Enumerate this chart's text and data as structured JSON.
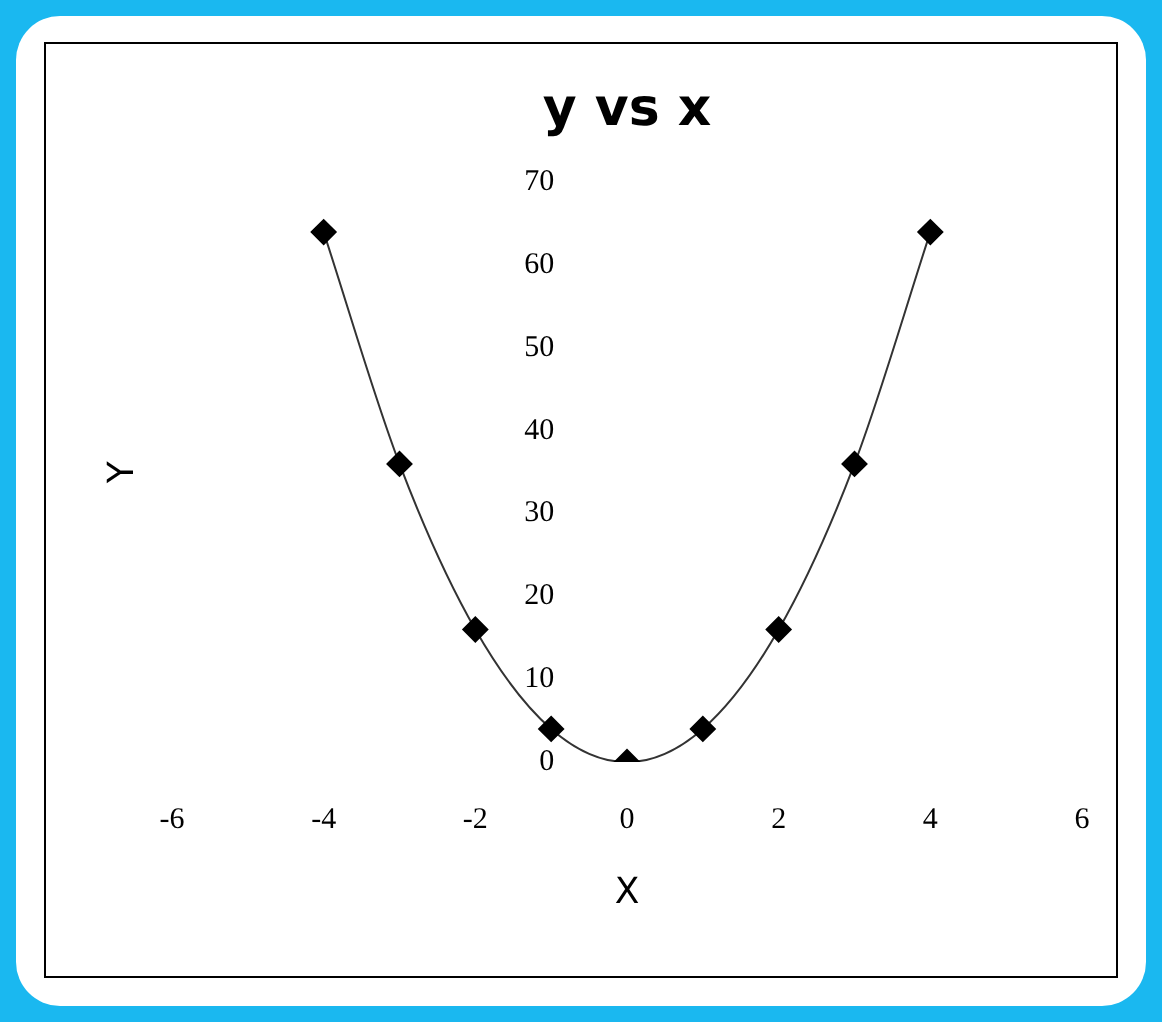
{
  "chart_data": {
    "type": "line",
    "title": "y vs x",
    "xlabel": "X",
    "ylabel": "Y",
    "x": [
      -4,
      -3,
      -2,
      -1,
      0,
      1,
      2,
      3,
      4
    ],
    "series": [
      {
        "color": "#000000",
        "values": [
          64,
          36,
          16,
          4,
          0,
          4,
          16,
          36,
          64
        ]
      }
    ],
    "xlim": [
      -6,
      6
    ],
    "xticks": [
      -6,
      -4,
      -2,
      0,
      2,
      4,
      6
    ],
    "ylim": [
      0,
      70
    ],
    "yticks": [
      0,
      10,
      20,
      30,
      40,
      50,
      60,
      70
    ],
    "grid": false,
    "legend": false,
    "marker": "diamond",
    "line_style": "solid"
  }
}
